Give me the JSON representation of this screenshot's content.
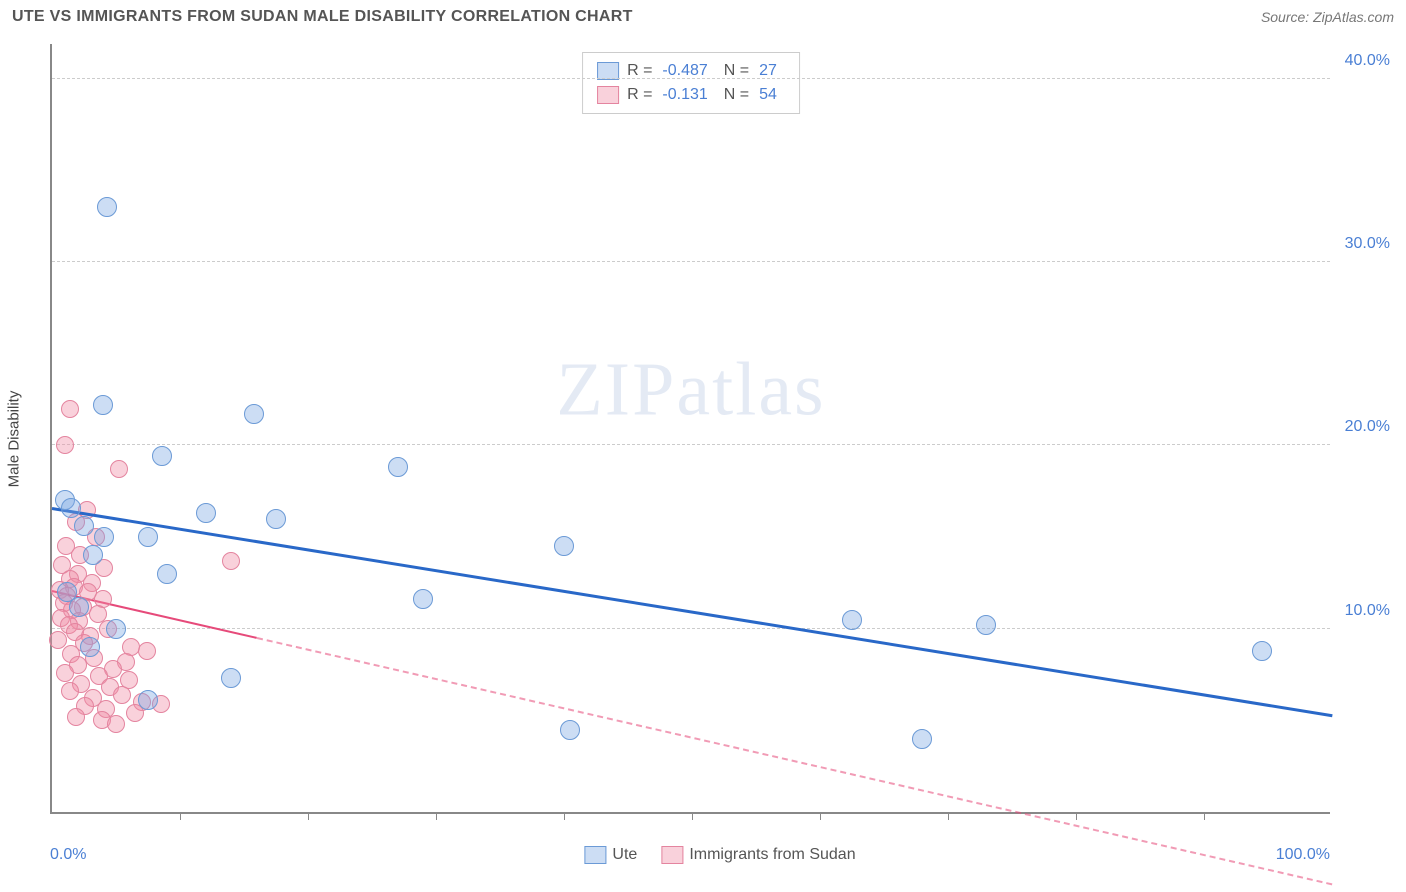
{
  "header": {
    "title": "UTE VS IMMIGRANTS FROM SUDAN MALE DISABILITY CORRELATION CHART",
    "source": "Source: ZipAtlas.com"
  },
  "watermark": {
    "prefix": "ZIP",
    "suffix": "atlas"
  },
  "chart": {
    "type": "scatter",
    "background_color": "#ffffff",
    "grid_color": "#cccccc",
    "axis_color": "#888888",
    "xlim": [
      0,
      100
    ],
    "ylim": [
      0,
      42
    ],
    "x_tick_positions": [
      10,
      20,
      30,
      40,
      50,
      60,
      70,
      80,
      90
    ],
    "x_axis_min_label": "0.0%",
    "x_axis_max_label": "100.0%",
    "y_ticks": [
      {
        "v": 10,
        "label": "10.0%"
      },
      {
        "v": 20,
        "label": "20.0%"
      },
      {
        "v": 30,
        "label": "30.0%"
      },
      {
        "v": 40,
        "label": "40.0%"
      }
    ],
    "y_axis_title": "Male Disability",
    "series": [
      {
        "name": "Ute",
        "fill": "rgba(120,165,225,0.38)",
        "stroke": "#6b9ad6",
        "marker_radius": 10,
        "trend": {
          "color": "#2968c8",
          "width": 3,
          "x1": 0,
          "y1": 16.5,
          "x2": 100,
          "y2": 5.2,
          "solid_until_x": 100
        },
        "stats": {
          "R": "-0.487",
          "N": "27"
        },
        "points": [
          {
            "x": 4.3,
            "y": 33.0
          },
          {
            "x": 4.0,
            "y": 22.2
          },
          {
            "x": 15.8,
            "y": 21.7
          },
          {
            "x": 8.6,
            "y": 19.4
          },
          {
            "x": 27.0,
            "y": 18.8
          },
          {
            "x": 1.0,
            "y": 17.0
          },
          {
            "x": 1.5,
            "y": 16.6
          },
          {
            "x": 12.0,
            "y": 16.3
          },
          {
            "x": 17.5,
            "y": 16.0
          },
          {
            "x": 2.5,
            "y": 15.6
          },
          {
            "x": 4.1,
            "y": 15.0
          },
          {
            "x": 7.5,
            "y": 15.0
          },
          {
            "x": 40.0,
            "y": 14.5
          },
          {
            "x": 3.2,
            "y": 14.0
          },
          {
            "x": 9.0,
            "y": 13.0
          },
          {
            "x": 1.2,
            "y": 12.0
          },
          {
            "x": 29.0,
            "y": 11.6
          },
          {
            "x": 62.5,
            "y": 10.5
          },
          {
            "x": 73.0,
            "y": 10.2
          },
          {
            "x": 94.5,
            "y": 8.8
          },
          {
            "x": 14.0,
            "y": 7.3
          },
          {
            "x": 7.5,
            "y": 6.1
          },
          {
            "x": 40.5,
            "y": 4.5
          },
          {
            "x": 68.0,
            "y": 4.0
          },
          {
            "x": 2.1,
            "y": 11.2
          },
          {
            "x": 5.0,
            "y": 10.0
          },
          {
            "x": 3.0,
            "y": 9.0
          }
        ]
      },
      {
        "name": "Immigrants from Sudan",
        "fill": "rgba(240,140,165,0.40)",
        "stroke": "#e4849f",
        "marker_radius": 9,
        "trend": {
          "color": "#e64a7a",
          "width": 2,
          "x1": 0,
          "y1": 12.0,
          "x2": 100,
          "y2": -4.0,
          "solid_until_x": 16
        },
        "stats": {
          "R": "-0.131",
          "N": "54"
        },
        "points": [
          {
            "x": 1.4,
            "y": 22.0
          },
          {
            "x": 1.0,
            "y": 20.0
          },
          {
            "x": 5.2,
            "y": 18.7
          },
          {
            "x": 2.7,
            "y": 16.5
          },
          {
            "x": 1.9,
            "y": 15.8
          },
          {
            "x": 3.4,
            "y": 15.0
          },
          {
            "x": 1.1,
            "y": 14.5
          },
          {
            "x": 2.2,
            "y": 14.0
          },
          {
            "x": 14.0,
            "y": 13.7
          },
          {
            "x": 0.8,
            "y": 13.5
          },
          {
            "x": 4.1,
            "y": 13.3
          },
          {
            "x": 2.0,
            "y": 13.0
          },
          {
            "x": 1.4,
            "y": 12.7
          },
          {
            "x": 3.1,
            "y": 12.5
          },
          {
            "x": 1.7,
            "y": 12.3
          },
          {
            "x": 0.6,
            "y": 12.1
          },
          {
            "x": 2.8,
            "y": 12.0
          },
          {
            "x": 1.2,
            "y": 11.8
          },
          {
            "x": 4.0,
            "y": 11.6
          },
          {
            "x": 0.9,
            "y": 11.4
          },
          {
            "x": 2.4,
            "y": 11.2
          },
          {
            "x": 1.6,
            "y": 11.0
          },
          {
            "x": 3.6,
            "y": 10.8
          },
          {
            "x": 0.7,
            "y": 10.6
          },
          {
            "x": 2.1,
            "y": 10.4
          },
          {
            "x": 1.3,
            "y": 10.2
          },
          {
            "x": 4.4,
            "y": 10.0
          },
          {
            "x": 1.8,
            "y": 9.8
          },
          {
            "x": 3.0,
            "y": 9.6
          },
          {
            "x": 0.5,
            "y": 9.4
          },
          {
            "x": 2.5,
            "y": 9.2
          },
          {
            "x": 6.2,
            "y": 9.0
          },
          {
            "x": 7.4,
            "y": 8.8
          },
          {
            "x": 1.5,
            "y": 8.6
          },
          {
            "x": 3.3,
            "y": 8.4
          },
          {
            "x": 5.8,
            "y": 8.2
          },
          {
            "x": 2.0,
            "y": 8.0
          },
          {
            "x": 4.8,
            "y": 7.8
          },
          {
            "x": 1.0,
            "y": 7.6
          },
          {
            "x": 3.7,
            "y": 7.4
          },
          {
            "x": 6.0,
            "y": 7.2
          },
          {
            "x": 2.3,
            "y": 7.0
          },
          {
            "x": 4.5,
            "y": 6.8
          },
          {
            "x": 1.4,
            "y": 6.6
          },
          {
            "x": 5.5,
            "y": 6.4
          },
          {
            "x": 3.2,
            "y": 6.2
          },
          {
            "x": 7.0,
            "y": 6.0
          },
          {
            "x": 2.6,
            "y": 5.8
          },
          {
            "x": 4.2,
            "y": 5.6
          },
          {
            "x": 6.5,
            "y": 5.4
          },
          {
            "x": 1.9,
            "y": 5.2
          },
          {
            "x": 3.9,
            "y": 5.0
          },
          {
            "x": 5.0,
            "y": 4.8
          },
          {
            "x": 8.5,
            "y": 5.9
          }
        ]
      }
    ],
    "legend": {
      "r_label": "R =",
      "n_label": "N ="
    },
    "label_fontsize": 16,
    "title_fontsize": 16
  }
}
